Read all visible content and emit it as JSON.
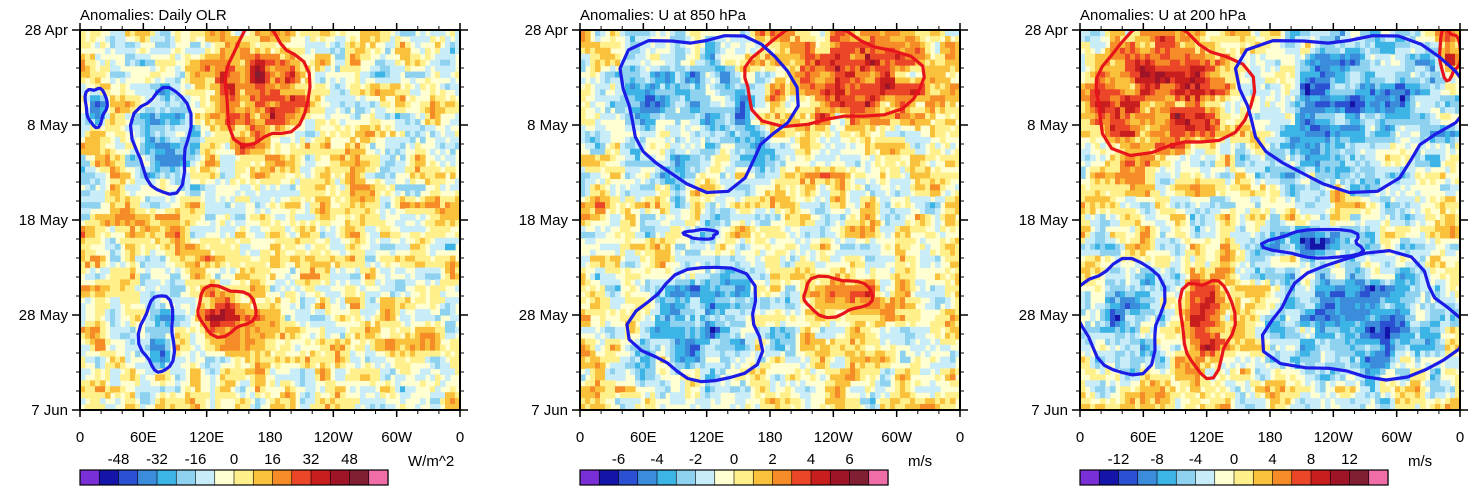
{
  "chart_data": [
    {
      "type": "heatmap",
      "title": "Anomalies: Daily OLR",
      "x_ticks": [
        "0",
        "60E",
        "120E",
        "180",
        "120W",
        "60W",
        "0"
      ],
      "x_range": [
        0,
        360
      ],
      "y_ticks": [
        "28 Apr",
        "8 May",
        "18 May",
        "28 May",
        "7 Jun"
      ],
      "y_range_days": [
        0,
        40
      ],
      "colorbar": {
        "labels": [
          "-48",
          "-32",
          "-16",
          "0",
          "16",
          "32",
          "48"
        ],
        "label_values": [
          -48,
          -32,
          -16,
          0,
          16,
          32,
          48
        ],
        "range": [
          -64,
          64
        ],
        "units": "W/m^2"
      },
      "positive_contours": [
        {
          "lon": [
            135,
            215
          ],
          "day": [
            0,
            12
          ]
        },
        {
          "lon": [
            110,
            165
          ],
          "day": [
            27,
            32
          ]
        }
      ],
      "negative_contours": [
        {
          "lon": [
            5,
            25
          ],
          "day": [
            6,
            10
          ]
        },
        {
          "lon": [
            52,
            105
          ],
          "day": [
            6,
            17
          ]
        },
        {
          "lon": [
            58,
            90
          ],
          "day": [
            28,
            36
          ]
        }
      ]
    },
    {
      "type": "heatmap",
      "title": "Anomalies: U at 850 hPa",
      "x_ticks": [
        "0",
        "60E",
        "120E",
        "180",
        "120W",
        "60W",
        "0"
      ],
      "x_range": [
        0,
        360
      ],
      "y_ticks": [
        "28 Apr",
        "8 May",
        "18 May",
        "28 May",
        "7 Jun"
      ],
      "y_range_days": [
        0,
        40
      ],
      "colorbar": {
        "labels": [
          "-6",
          "-4",
          "-2",
          "0",
          "2",
          "4",
          "6"
        ],
        "label_values": [
          -6,
          -4,
          -2,
          0,
          2,
          4,
          6
        ],
        "range": [
          -8,
          8
        ],
        "units": "m/s"
      },
      "positive_contours": [
        {
          "lon": [
            150,
            320
          ],
          "day": [
            0,
            10
          ]
        },
        {
          "lon": [
            210,
            275
          ],
          "day": [
            26,
            30
          ]
        }
      ],
      "negative_contours": [
        {
          "lon": [
            40,
            200
          ],
          "day": [
            0,
            16
          ]
        },
        {
          "lon": [
            100,
            130
          ],
          "day": [
            21,
            22
          ]
        },
        {
          "lon": [
            55,
            175
          ],
          "day": [
            25,
            37
          ]
        }
      ]
    },
    {
      "type": "heatmap",
      "title": "Anomalies: U at 200 hPa",
      "x_ticks": [
        "0",
        "60E",
        "120E",
        "180",
        "120W",
        "60W",
        "0"
      ],
      "x_range": [
        0,
        360
      ],
      "y_ticks": [
        "28 Apr",
        "8 May",
        "18 May",
        "28 May",
        "7 Jun"
      ],
      "y_range_days": [
        0,
        40
      ],
      "colorbar": {
        "labels": [
          "-12",
          "-8",
          "-4",
          "0",
          "4",
          "8",
          "12"
        ],
        "label_values": [
          -12,
          -8,
          -4,
          0,
          4,
          8,
          12
        ],
        "range": [
          -16,
          16
        ],
        "units": "m/s"
      },
      "positive_contours": [
        {
          "lon": [
            10,
            160
          ],
          "day": [
            0,
            13
          ]
        },
        {
          "lon": [
            340,
            360
          ],
          "day": [
            0,
            5
          ]
        },
        {
          "lon": [
            95,
            145
          ],
          "day": [
            26,
            36
          ]
        }
      ],
      "negative_contours": [
        {
          "lon": [
            150,
            360
          ],
          "day": [
            0,
            16
          ]
        },
        {
          "lon": [
            0,
            80
          ],
          "day": [
            24,
            36
          ]
        },
        {
          "lon": [
            180,
            270
          ],
          "day": [
            21,
            24
          ]
        },
        {
          "lon": [
            180,
            360
          ],
          "day": [
            24,
            37
          ]
        }
      ]
    }
  ],
  "colors": {
    "positive_contour": "#e8141c",
    "negative_contour": "#1c1ce6",
    "palette": [
      "#7a2ed6",
      "#1414a8",
      "#2c50d2",
      "#3c8cdc",
      "#3cb4e6",
      "#8ed2f0",
      "#c8ecf8",
      "#ffffd2",
      "#fff08c",
      "#fac23c",
      "#f58c28",
      "#eb4628",
      "#c81e1e",
      "#a01428",
      "#801e32",
      "#f06ea8"
    ]
  }
}
